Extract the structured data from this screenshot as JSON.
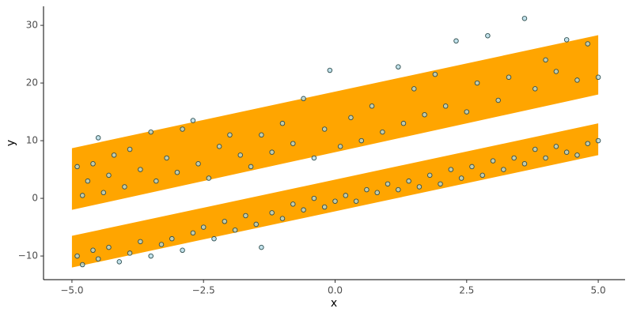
{
  "chart_data": {
    "type": "scatter",
    "x_label": "x",
    "y_label": "y",
    "xlim": [
      -5.54,
      5.51
    ],
    "ylim": [
      -14.1,
      33.3
    ],
    "xticks": [
      {
        "value": -5,
        "label": "−5.0"
      },
      {
        "value": -2.5,
        "label": "−2.5"
      },
      {
        "value": 0,
        "label": "0.0"
      },
      {
        "value": 2.5,
        "label": "2.5"
      },
      {
        "value": 5,
        "label": "5.0"
      }
    ],
    "yticks": [
      {
        "value": -10,
        "label": "−10"
      },
      0,
      10,
      20,
      30
    ],
    "ribbons": [
      {
        "color": "#ffa500",
        "x": [
          -5,
          5
        ],
        "ymin": [
          -2,
          18
        ],
        "ymax": [
          8.7,
          28.3
        ]
      },
      {
        "color": "#ffa500",
        "x": [
          -5,
          5
        ],
        "ymin": [
          -12,
          7.5
        ],
        "ymax": [
          -6.5,
          13
        ]
      }
    ],
    "point_stroke": "#2f4f4f",
    "series": [
      {
        "color": "#add8e6",
        "x": [
          -4.9,
          -4.8,
          -4.7,
          -4.6,
          -4.5,
          -4.4,
          -4.3,
          -4.2,
          -4.0,
          -3.9,
          -3.7,
          -3.5,
          -3.4,
          -3.2,
          -3.0,
          -2.9,
          -2.7,
          -2.6,
          -2.4,
          -2.2,
          -2.0,
          -1.8,
          -1.6,
          -1.4,
          -1.2,
          -1.0,
          -0.8,
          -0.6,
          -0.4,
          -0.2,
          -0.1,
          0.1,
          0.3,
          0.5,
          0.7,
          0.9,
          1.2,
          1.3,
          1.5,
          1.7,
          1.9,
          2.1,
          2.3,
          2.5,
          2.7,
          2.9,
          3.1,
          3.3,
          3.6,
          3.8,
          4.0,
          4.2,
          4.4,
          4.6,
          4.8,
          5.0
        ],
        "values": [
          5.5,
          0.5,
          3,
          6,
          10.5,
          1,
          4,
          7.5,
          2,
          8.5,
          5,
          11.5,
          3,
          7,
          4.5,
          12,
          13.5,
          6,
          3.5,
          9,
          11,
          7.5,
          5.5,
          11,
          8,
          13,
          9.5,
          17.3,
          7,
          12,
          22.2,
          9,
          14,
          10,
          16,
          11.5,
          22.8,
          13,
          19,
          14.5,
          21.5,
          16,
          27.3,
          15,
          20,
          28.2,
          17,
          21,
          31.2,
          19,
          24,
          22,
          27.5,
          20.5,
          26.8,
          21
        ]
      },
      {
        "color": "#add8e6",
        "x": [
          -4.9,
          -4.8,
          -4.6,
          -4.5,
          -4.3,
          -4.1,
          -3.9,
          -3.7,
          -3.5,
          -3.3,
          -3.1,
          -2.9,
          -2.7,
          -2.5,
          -2.3,
          -2.1,
          -1.9,
          -1.7,
          -1.5,
          -1.4,
          -1.2,
          -1.0,
          -0.8,
          -0.6,
          -0.4,
          -0.2,
          0,
          0.2,
          0.4,
          0.6,
          0.8,
          1.0,
          1.2,
          1.4,
          1.6,
          1.8,
          2.0,
          2.2,
          2.4,
          2.6,
          2.8,
          3.0,
          3.2,
          3.4,
          3.6,
          3.8,
          4.0,
          4.2,
          4.4,
          4.6,
          4.8,
          5.0
        ],
        "values": [
          -10,
          -11.5,
          -9,
          -10.5,
          -8.5,
          -11,
          -9.5,
          -7.5,
          -10,
          -8,
          -7,
          -9,
          -6,
          -5,
          -7,
          -4,
          -5.5,
          -3,
          -4.5,
          -8.5,
          -2.5,
          -3.5,
          -1,
          -2,
          0,
          -1.5,
          -0.5,
          0.5,
          -0.5,
          1.5,
          1,
          2.5,
          1.5,
          3,
          2,
          4,
          2.5,
          5,
          3.5,
          5.5,
          4,
          6.5,
          5,
          7,
          6,
          8.5,
          7,
          9,
          8,
          7.5,
          9.5,
          10
        ]
      }
    ]
  }
}
